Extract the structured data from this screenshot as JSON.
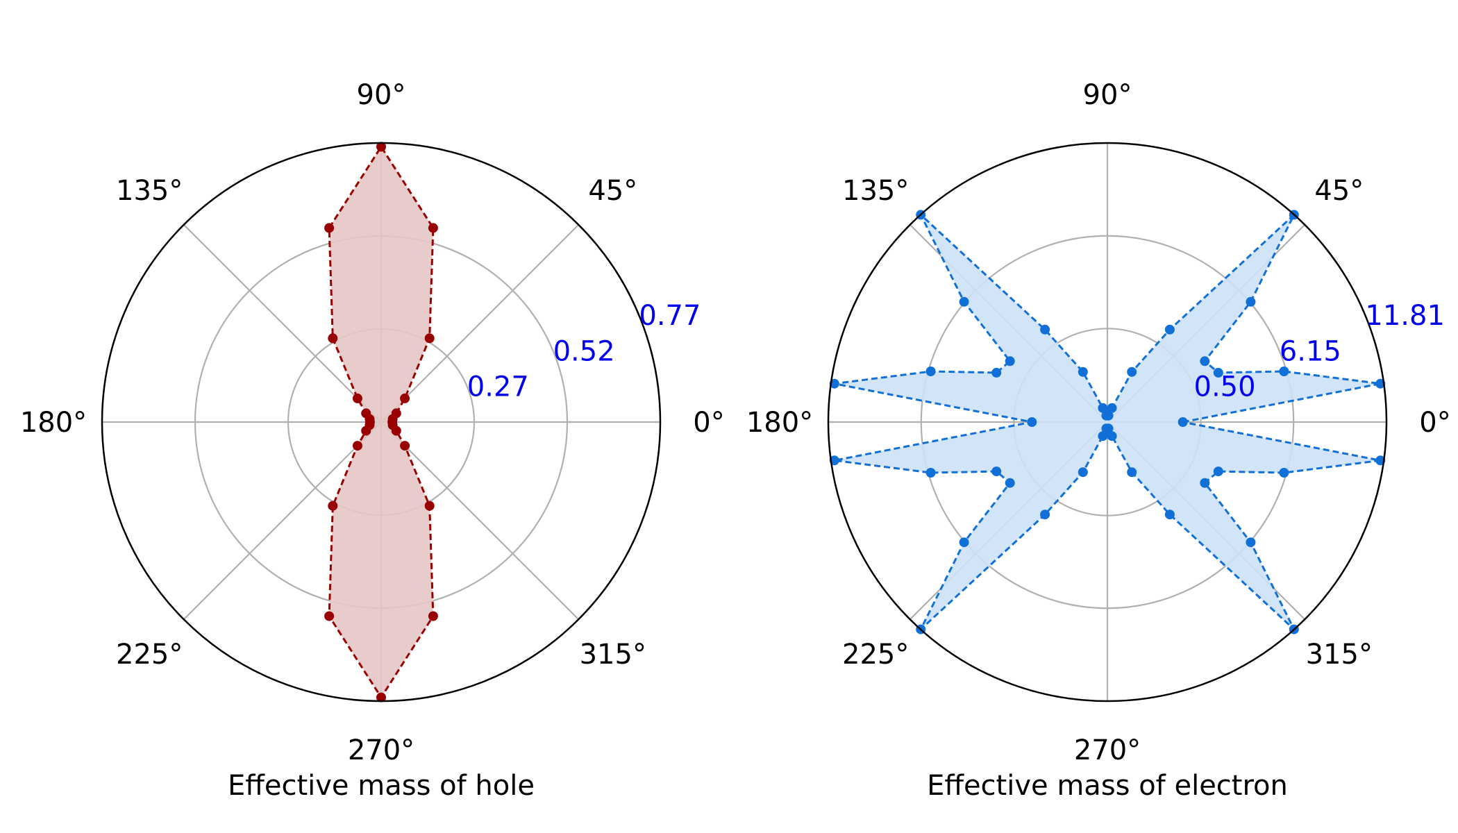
{
  "chart_data": [
    {
      "type": "polar-line",
      "xlabel": "Effective mass of hole",
      "angle_tick_labels": [
        "0°",
        "45°",
        "90°",
        "135°",
        "180°",
        "225°",
        "270°",
        "315°"
      ],
      "angle_ticks_deg": [
        0,
        45,
        90,
        135,
        180,
        225,
        270,
        315
      ],
      "radial_tick_values": [
        0.27,
        0.52,
        0.77
      ],
      "radial_tick_labels": [
        "0.27",
        "0.52",
        "0.77"
      ],
      "rlim": [
        0.02,
        0.77
      ],
      "theta_deg": [
        0,
        15,
        30,
        45,
        60,
        75,
        90,
        105,
        120,
        135,
        150,
        165,
        180,
        195,
        210,
        225,
        240,
        255,
        270,
        285,
        300,
        315,
        330,
        345
      ],
      "values": [
        0.05,
        0.052,
        0.067,
        0.11,
        0.28,
        0.56,
        0.76,
        0.56,
        0.28,
        0.11,
        0.067,
        0.052,
        0.05,
        0.052,
        0.067,
        0.11,
        0.28,
        0.56,
        0.76,
        0.56,
        0.28,
        0.11,
        0.067,
        0.052
      ],
      "line_style": "dashed",
      "colors": {
        "line": "#990000",
        "fill": "#e5c5c5",
        "marker": "#990000",
        "tick_label": "#0000ee"
      },
      "grid": true
    },
    {
      "type": "polar-line",
      "xlabel": "Effective mass of electron",
      "angle_tick_labels": [
        "0°",
        "45°",
        "90°",
        "135°",
        "180°",
        "225°",
        "270°",
        "315°"
      ],
      "angle_ticks_deg": [
        0,
        45,
        90,
        135,
        180,
        225,
        270,
        315
      ],
      "radial_tick_values": [
        0.5,
        6.15,
        11.81
      ],
      "radial_tick_labels": [
        "0.50",
        "6.15",
        "11.81"
      ],
      "rlim": [
        -5.2,
        11.81
      ],
      "theta_deg": [
        0,
        8,
        16,
        24,
        32,
        40,
        48,
        56,
        64,
        72,
        80,
        88,
        92,
        100,
        108,
        116,
        124,
        132,
        140,
        148,
        156,
        164,
        172,
        180,
        188,
        196,
        204,
        212,
        220,
        228,
        236,
        244,
        252,
        260,
        268,
        272,
        280,
        288,
        296,
        304,
        312,
        320,
        328,
        336,
        344,
        352
      ],
      "values": [
        -0.6,
        11.6,
        6.0,
        2.2,
        1.8,
        6.2,
        11.8,
        1.6,
        -1.8,
        -4.3,
        -4.8,
        -4.7,
        -4.7,
        -4.8,
        -4.3,
        -1.8,
        1.6,
        11.8,
        6.2,
        1.8,
        2.2,
        6.0,
        11.6,
        -0.6,
        11.6,
        6.0,
        2.2,
        1.8,
        6.2,
        11.8,
        1.6,
        -1.8,
        -4.3,
        -4.8,
        -4.7,
        -4.7,
        -4.8,
        -4.3,
        -1.8,
        1.6,
        11.8,
        6.2,
        1.8,
        2.2,
        6.0,
        11.6
      ],
      "line_style": "dashed",
      "colors": {
        "line": "#1070d8",
        "fill": "#cde2f7",
        "marker": "#1070d8",
        "tick_label": "#0000ee"
      },
      "grid": true
    }
  ]
}
